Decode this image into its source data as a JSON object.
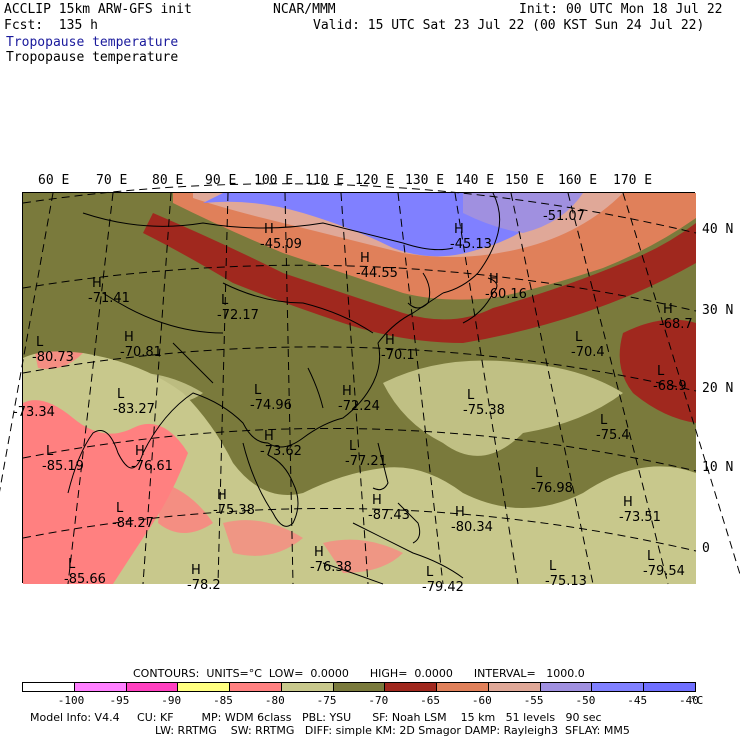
{
  "header": {
    "model": "ACCLIP 15km ARW-GFS init",
    "org": "NCAR/MMM",
    "init": "Init: 00 UTC Mon 18 Jul 22",
    "fcst": "Fcst:  135 h",
    "valid": "Valid: 15 UTC Sat 23 Jul 22 (00 KST Sun 24 Jul 22)",
    "field_blue": "Tropopause temperature",
    "field_black": "Tropopause temperature"
  },
  "map": {
    "lon_labels": [
      "60 E",
      "70 E",
      "80 E",
      "90 E",
      "100 E",
      "110 E",
      "120 E",
      "130 E",
      "140 E",
      "150 E",
      "160 E",
      "170 E"
    ],
    "lat_labels": [
      "40 N",
      "30 N",
      "20 N",
      "10 N",
      "0"
    ],
    "pressure_centers": [
      {
        "type": "H",
        "value": "-45.09"
      },
      {
        "type": "H",
        "value": "-44.55"
      },
      {
        "type": "H",
        "value": "-45.13"
      },
      {
        "type": "",
        "value": "-51.07"
      },
      {
        "type": "H",
        "value": "-60.16"
      },
      {
        "type": "H",
        "value": "-71.41"
      },
      {
        "type": "L",
        "value": "-72.17"
      },
      {
        "type": "L",
        "value": "-80.73"
      },
      {
        "type": "H",
        "value": "-70.81"
      },
      {
        "type": "H",
        "value": "-70.1"
      },
      {
        "type": "L",
        "value": "-70.4"
      },
      {
        "type": "H",
        "value": "-68.7"
      },
      {
        "type": "L",
        "value": "-68.9"
      },
      {
        "type": "",
        "value": "-73.34"
      },
      {
        "type": "L",
        "value": "-83.27"
      },
      {
        "type": "L",
        "value": "-74.96"
      },
      {
        "type": "H",
        "value": "-72.24"
      },
      {
        "type": "L",
        "value": "-75.38"
      },
      {
        "type": "L",
        "value": "-75.4"
      },
      {
        "type": "L",
        "value": "-85.19"
      },
      {
        "type": "H",
        "value": "-76.61"
      },
      {
        "type": "H",
        "value": "-73.62"
      },
      {
        "type": "L",
        "value": "-77.21"
      },
      {
        "type": "L",
        "value": "-76.98"
      },
      {
        "type": "L",
        "value": "-84.27"
      },
      {
        "type": "H",
        "value": "-75.38"
      },
      {
        "type": "H",
        "value": "-87.43"
      },
      {
        "type": "H",
        "value": "-80.34"
      },
      {
        "type": "H",
        "value": "-73.51"
      },
      {
        "type": "L",
        "value": "-85.66"
      },
      {
        "type": "H",
        "value": "-76.38"
      },
      {
        "type": "H",
        "value": "-78.2"
      },
      {
        "type": "L",
        "value": "-79.42"
      },
      {
        "type": "L",
        "value": "-75.13"
      },
      {
        "type": "L",
        "value": "-79.54"
      }
    ]
  },
  "contours_line": "CONTOURS:  UNITS=°C  LOW=  0.0000      HIGH=  0.0000      INTERVAL=   1000.0",
  "colorbar": {
    "colors": [
      "#ffffff",
      "#ff80ff",
      "#ff40c0",
      "#ffff80",
      "#ff8080",
      "#c8c88c",
      "#7a7a3c",
      "#a0281e",
      "#e0805a",
      "#e0a898",
      "#a090e0",
      "#8080ff",
      "#7070ff"
    ],
    "ticks": [
      "-100",
      "-95",
      "-90",
      "-85",
      "-80",
      "-75",
      "-70",
      "-65",
      "-60",
      "-55",
      "-50",
      "-45",
      "-40"
    ],
    "unit": "°C"
  },
  "footer": {
    "line1": "Model Info: V4.4     CU: KF        MP: WDM 6class   PBL: YSU      SF: Noah LSM    15 km   51 levels   90 sec",
    "line2": "LW: RRTMG    SW: RRTMG   DIFF: simple KM: 2D Smagor DAMP: Rayleigh3  SFLAY: MM5"
  }
}
